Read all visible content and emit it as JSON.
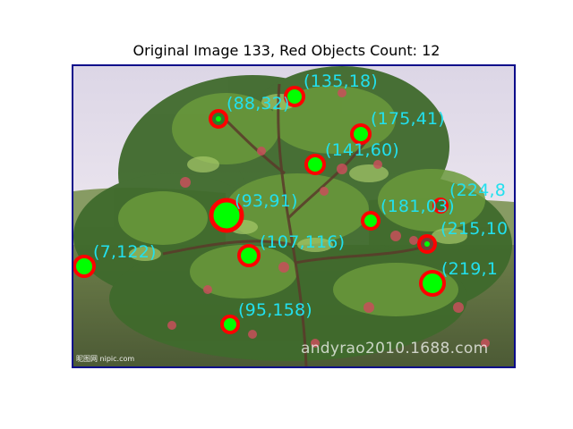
{
  "figure": {
    "title": "Original Image 133, Red Objects Count: 12"
  },
  "photo": {
    "watermark": "andyrao2010.1688.com",
    "corner_logo": "昵图网 nipic.com"
  },
  "detections": [
    {
      "label": "(135,18)"
    },
    {
      "label": "(88,32)"
    },
    {
      "label": "(175,41)"
    },
    {
      "label": "(141,60)"
    },
    {
      "label": "(224,8"
    },
    {
      "label": "(93,91)"
    },
    {
      "label": "(181,03)"
    },
    {
      "label": "(215,10"
    },
    {
      "label": "(107,116)"
    },
    {
      "label": "(7,122)"
    },
    {
      "label": "(219,1"
    },
    {
      "label": "(95,158)"
    }
  ],
  "colors": {
    "circle": "#ff0000",
    "fill": "#00ff00",
    "label": "#22e0ee",
    "frame": "#0b0b8a"
  }
}
